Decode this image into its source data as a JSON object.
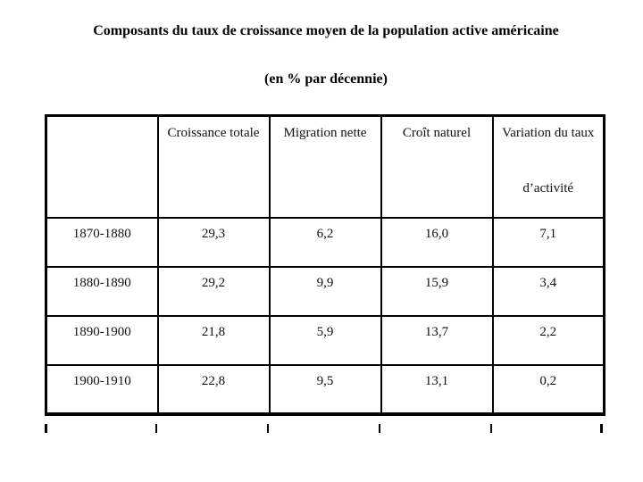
{
  "title": "Composants du taux de croissance moyen de la population active américaine",
  "subtitle": "(en % par décennie)",
  "table": {
    "columns": [
      {
        "label": "Croissance totale"
      },
      {
        "label": "Migration nette"
      },
      {
        "label": "Croît naturel"
      },
      {
        "label": "Variation du taux d’activité",
        "line1": "Variation du taux",
        "line2": "d’activité"
      }
    ],
    "rows": [
      {
        "period": "1870-1880",
        "values": [
          "29,3",
          "6,2",
          "16,0",
          "7,1"
        ]
      },
      {
        "period": "1880-1890",
        "values": [
          "29,2",
          "9,9",
          "15,9",
          "3,4"
        ]
      },
      {
        "period": "1890-1900",
        "values": [
          "21,8",
          "5,9",
          "13,7",
          "2,2"
        ]
      },
      {
        "period": "1900-1910",
        "values": [
          "22,8",
          "9,5",
          "13,1",
          "0,2"
        ]
      }
    ]
  },
  "colors": {
    "background": "#ffffff",
    "text": "#111111",
    "border": "#000000"
  }
}
